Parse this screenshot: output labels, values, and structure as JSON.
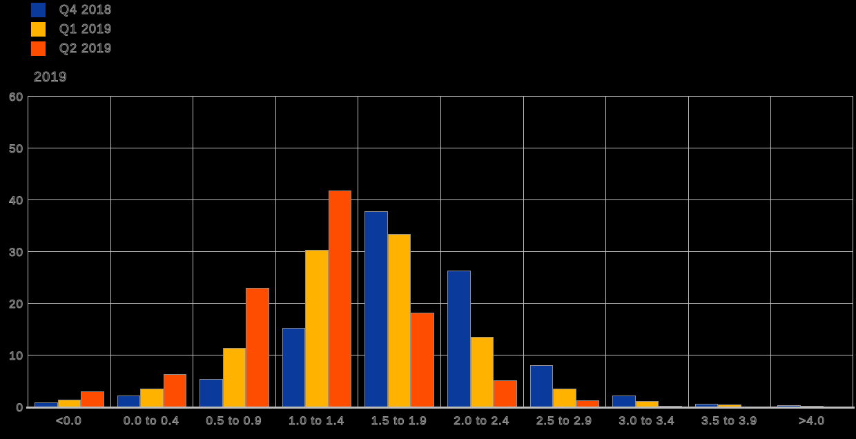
{
  "title": "2019",
  "legend": {
    "position": "top-left",
    "items": [
      {
        "label": "Q4 2018",
        "color": "#0a3a9c"
      },
      {
        "label": "Q1 2019",
        "color": "#ffb300"
      },
      {
        "label": "Q2 2019",
        "color": "#ff4d00"
      }
    ]
  },
  "colors": {
    "background": "#000000",
    "gridline": "#bdbdbd",
    "text_outline": "#9a9a9a",
    "series_blue": "#0a3a9c",
    "series_yellow": "#ffb300",
    "series_orange": "#ff4d00"
  },
  "chart_data": {
    "type": "bar",
    "title": "2019",
    "xlabel": "",
    "ylabel": "",
    "categories": [
      "<0.0",
      "0.0 to 0.4",
      "0.5 to 0.9",
      "1.0 to 1.4",
      "1.5 to 1.9",
      "2.0 to 2.4",
      "2.5 to 2.9",
      "3.0 to 3.4",
      "3.5 to 3.9",
      ">4.0"
    ],
    "series": [
      {
        "name": "Q4 2018",
        "color": "#0a3a9c",
        "values": [
          0.9,
          2.3,
          5.5,
          15.3,
          37.8,
          26.4,
          8.1,
          2.2,
          0.7,
          0.4
        ]
      },
      {
        "name": "Q1 2019",
        "color": "#ffb300",
        "values": [
          1.5,
          3.6,
          11.5,
          30.4,
          33.5,
          13.6,
          3.6,
          1.2,
          0.5,
          0.3
        ]
      },
      {
        "name": "Q2 2019",
        "color": "#ff4d00",
        "values": [
          3.0,
          6.4,
          23.1,
          41.9,
          18.2,
          5.2,
          1.4,
          0.3,
          0.15,
          0.1
        ]
      }
    ],
    "ylim": [
      0,
      60
    ],
    "y_ticks": [
      0,
      10,
      20,
      30,
      40,
      50,
      60
    ],
    "y_tick_labels": [
      "0",
      "10",
      "20",
      "30",
      "40",
      "50",
      "60"
    ],
    "grid": true,
    "legend_position": "top-left"
  }
}
